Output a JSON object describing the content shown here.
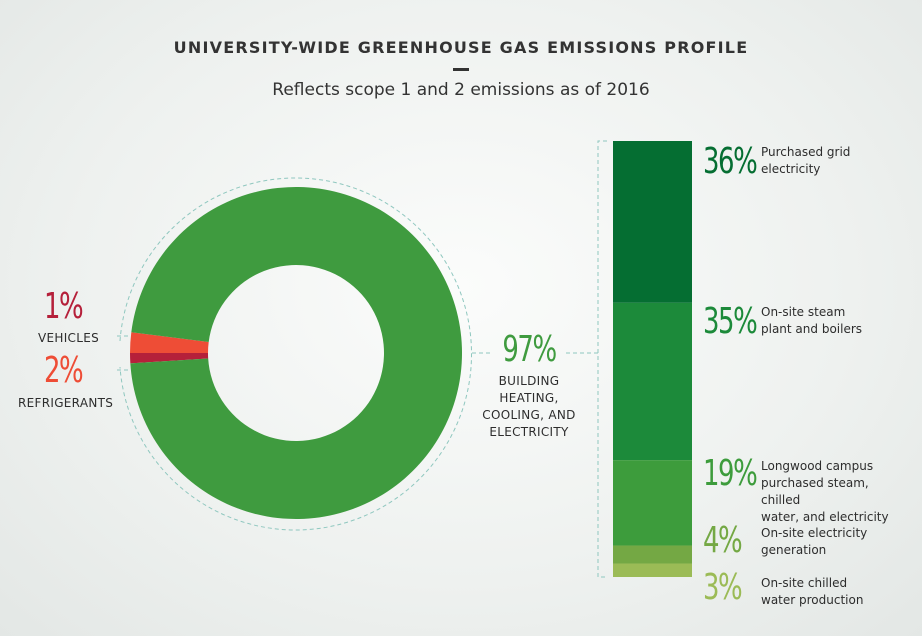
{
  "title": "UNIVERSITY-WIDE GREENHOUSE GAS EMISSIONS PROFILE",
  "subtitle": "Reflects scope 1 and 2 emissions as of 2016",
  "chart_data": [
    {
      "type": "pie",
      "donut": true,
      "slices": [
        {
          "label": "VEHICLES",
          "value": 1,
          "display": "1%",
          "color": "#b5203a"
        },
        {
          "label": "REFRIGERANTS",
          "value": 2,
          "display": "2%",
          "color": "#ee4d36"
        },
        {
          "label": "BUILDING HEATING, COOLING, AND ELECTRICITY",
          "label_lines": [
            "BUILDING",
            "HEATING,",
            "COOLING, AND",
            "ELECTRICITY"
          ],
          "value": 97,
          "display": "97%",
          "color": "#3f9b3f"
        }
      ]
    },
    {
      "type": "bar",
      "stacked": true,
      "parent": "BUILDING HEATING, COOLING, AND ELECTRICITY",
      "segments": [
        {
          "label": "Purchased grid electricity",
          "label_lines": [
            "Purchased grid",
            "electricity"
          ],
          "value": 36,
          "display": "36%",
          "color": "#056e32"
        },
        {
          "label": "On-site steam plant and boilers",
          "label_lines": [
            "On-site steam",
            "plant and boilers"
          ],
          "value": 35,
          "display": "35%",
          "color": "#1c8a3a"
        },
        {
          "label": "Longwood campus purchased steam, chilled water, and electricity",
          "label_lines": [
            "Longwood campus",
            "purchased steam, chilled",
            "water, and electricity"
          ],
          "value": 19,
          "display": "19%",
          "color": "#3d9c3c"
        },
        {
          "label": "On-site electricity generation",
          "label_lines": [
            "On-site electricity",
            "generation"
          ],
          "value": 4,
          "display": "4%",
          "color": "#74a844"
        },
        {
          "label": "On-site chilled water production",
          "label_lines": [
            "On-site chilled",
            "water production"
          ],
          "value": 3,
          "display": "3%",
          "color": "#9bbb56"
        }
      ]
    }
  ]
}
